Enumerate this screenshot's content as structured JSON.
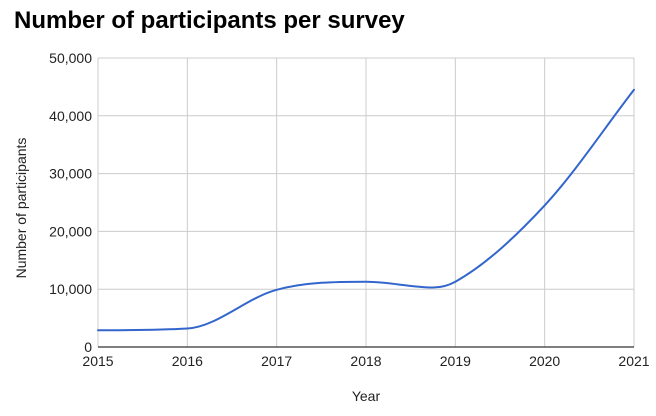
{
  "chart_data": {
    "type": "line",
    "title": "Number of participants per survey",
    "xlabel": "Year",
    "ylabel": "Number of participants",
    "x_ticks": [
      "2015",
      "2016",
      "2017",
      "2018",
      "2019",
      "2020",
      "2021"
    ],
    "y_ticks": [
      "0",
      "10,000",
      "20,000",
      "30,000",
      "40,000",
      "50,000"
    ],
    "xlim": [
      2015,
      2021
    ],
    "ylim": [
      0,
      50000
    ],
    "grid": true,
    "smooth": true,
    "colors": {
      "line": "#3366cc",
      "grid": "#cccccc",
      "baseline": "#333333"
    },
    "series": [
      {
        "x": [
          2015,
          2016,
          2017,
          2018,
          2018.75,
          2019,
          2020,
          2021
        ],
        "y": [
          2900,
          3200,
          9900,
          11300,
          10300,
          11300,
          24500,
          44500
        ]
      }
    ]
  }
}
